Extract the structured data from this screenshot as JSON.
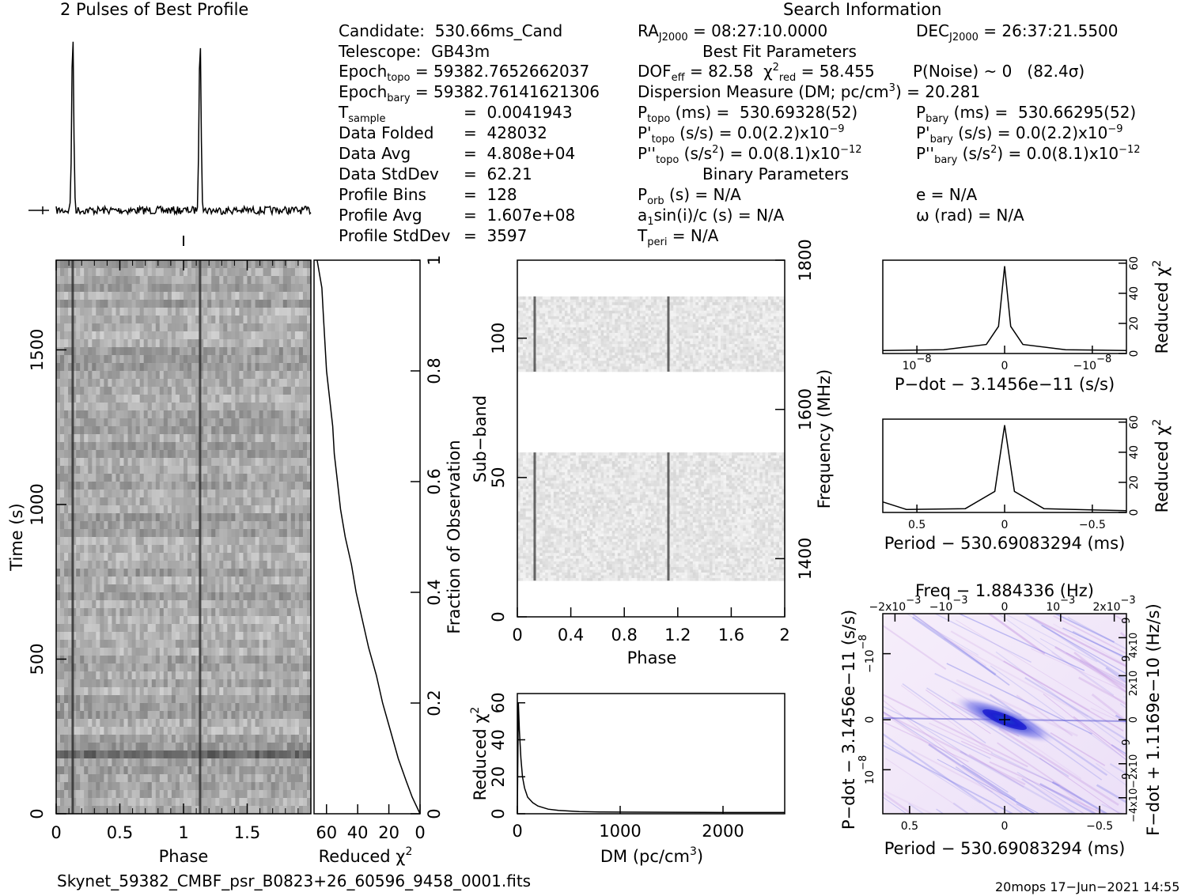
{
  "profile": {
    "title": "2 Pulses of Best Profile"
  },
  "search": {
    "heading": "Search Information",
    "candidate": "Candidate:  530.66ms_Cand",
    "telescope": "Telescope:  GB43m",
    "epoch_topo_label": "Epoch",
    "epoch_topo_sub": "topo",
    "epoch_topo_value": " = 59382.7652662037",
    "epoch_bary_label": "Epoch",
    "epoch_bary_sub": "bary",
    "epoch_bary_value": " = 59382.76141621306",
    "tsample_label": "T",
    "tsample_sub": "sample",
    "tsample_value": "=  0.0041943",
    "folded_label": "Data Folded",
    "folded_value": "=  428032",
    "avg_label": "Data Avg",
    "avg_value": "=  4.808e+04",
    "std_label": "Data StdDev",
    "std_value": "=  62.21",
    "bins_label": "Profile Bins",
    "bins_value": "=  128",
    "pavg_label": "Profile Avg",
    "pavg_value": "=  1.607e+08",
    "pstd_label": "Profile StdDev",
    "pstd_value": "=  3597",
    "ra_pre": "RA",
    "ra_sub": "J2000",
    "ra_value": " = 08:27:10.0000",
    "dec_pre": "DEC",
    "dec_sub": "J2000",
    "dec_value": " = 26:37:21.5500",
    "best_fit": "Best Fit Parameters",
    "dof_pre": "DOF",
    "dof_sub": "eff",
    "dof_value": " = 82.58  ",
    "chi_pre": "χ",
    "chi_sup": "2",
    "chi_sub": "red",
    "chi_value": " = 58.455",
    "pnoise": "P(Noise) ~ 0   (82.4σ)",
    "dm_pre": "Dispersion Measure (DM; pc/cm",
    "dm_sup": "3",
    "dm_value": ") = 20.281",
    "ptopo_pre": "P",
    "ptopo_sub": "topo",
    "ptopo_value": " (ms) =  530.69328(52)",
    "pbary_pre": "P",
    "pbary_sub": "bary",
    "pbary_value": " (ms) =  530.66295(52)",
    "pdtopo_pre": "P'",
    "pdtopo_sub": "topo",
    "pdtopo_value": " (s/s) = 0.0(2.2)x10",
    "pdtopo_sup": "−9",
    "pdbary_pre": "P'",
    "pdbary_sub": "bary",
    "pdbary_value": " (s/s) = 0.0(2.2)x10",
    "pdbary_sup": "−9",
    "pddtopo_pre": "P''",
    "pddtopo_sub": "topo",
    "pddtopo_mid": " (s/s",
    "pddtopo_sup1": "2",
    "pddtopo_value": ") = 0.0(8.1)x10",
    "pddtopo_sup2": "−12",
    "pddbary_pre": "P''",
    "pddbary_sub": "bary",
    "pddbary_mid": " (s/s",
    "pddbary_sup1": "2",
    "pddbary_value": ") = 0.0(8.1)x10",
    "pddbary_sup2": "−12",
    "binary": "Binary Parameters",
    "porb_pre": "P",
    "porb_sub": "orb",
    "porb_value": " (s) = N/A",
    "asini_pre": "a",
    "asini_sub": "1",
    "asini_value": "sin(i)/c (s) = N/A",
    "tperi_pre": "T",
    "tperi_sub": "peri",
    "tperi_value": " = N/A",
    "ecc": "e = N/A",
    "omega": "ω (rad) = N/A"
  },
  "footer": {
    "filename": "Skynet_59382_CMBF_psr_B0823+26_60596_9458_0001.fits",
    "stamp": "20mops 17−Jun−2021 14:55"
  },
  "chart_data": [
    {
      "type": "line",
      "panel": "profile",
      "title": "2 Pulses of Best Profile",
      "x": [
        0,
        0.13,
        1.0,
        1.13,
        2.0
      ],
      "pulse_phases": [
        0.13,
        1.13
      ],
      "xlim": [
        0,
        2
      ]
    },
    {
      "type": "heatmap",
      "panel": "time-phase",
      "xlabel": "Phase",
      "ylabel": "Time (s)",
      "xticks": [
        "0",
        "0.5",
        "1",
        "1.5"
      ],
      "yticks": [
        "0",
        "500",
        "1000",
        "1500"
      ],
      "xlim": [
        0,
        2
      ],
      "ylim": [
        0,
        1790
      ],
      "pulse_phases": [
        0.13,
        1.13
      ]
    },
    {
      "type": "line",
      "panel": "time-chi2",
      "xlabel": "Reduced χ",
      "xlabel_sup": "2",
      "ylabel": "Fraction of Observation",
      "xticks": [
        "60",
        "40",
        "20",
        "0"
      ],
      "yticks": [
        "0",
        "0.2",
        "0.4",
        "0.6",
        "0.8",
        "1"
      ],
      "xlim": [
        68,
        0
      ],
      "ylim": [
        0,
        1
      ],
      "y": [
        0,
        0.03,
        0.06,
        0.1,
        0.15,
        0.2,
        0.25,
        0.3,
        0.35,
        0.4,
        0.45,
        0.5,
        0.55,
        0.6,
        0.65,
        0.7,
        0.75,
        0.8,
        0.85,
        0.9,
        0.95,
        1.0
      ],
      "x": [
        0,
        5,
        9,
        14,
        19,
        24,
        28,
        33,
        37,
        41,
        44,
        48,
        51,
        53,
        55,
        56,
        58,
        60,
        61,
        62,
        63,
        66
      ]
    },
    {
      "type": "heatmap",
      "panel": "subband-phase",
      "xlabel": "Phase",
      "ylabel": "Sub−band",
      "y2label": "Frequency (MHz)",
      "xticks": [
        "0",
        "0.4",
        "0.8",
        "1.2",
        "1.6",
        "2"
      ],
      "yticks": [
        "0",
        "50",
        "100"
      ],
      "y2ticks": [
        "1400",
        "1600",
        "1800"
      ],
      "xlim": [
        0,
        2
      ],
      "ylim": [
        0,
        128
      ],
      "filled_subbands": [
        [
          13,
          59
        ],
        [
          88,
          115
        ]
      ],
      "pulse_phases": [
        0.13,
        1.13
      ]
    },
    {
      "type": "line",
      "panel": "dm-chi2",
      "xlabel": "DM (pc/cm",
      "xlabel_sup": "3",
      "xlabel_end": ")",
      "ylabel": "Reduced χ",
      "ylabel_sup": "2",
      "xticks": [
        "0",
        "1000",
        "2000"
      ],
      "yticks": [
        "0",
        "20",
        "40",
        "60"
      ],
      "xlim": [
        0,
        2600
      ],
      "ylim": [
        0,
        65
      ],
      "x": [
        0,
        10,
        20,
        35,
        50,
        70,
        100,
        150,
        200,
        300,
        400,
        600,
        800,
        1000,
        1500,
        2000,
        2600
      ],
      "y": [
        0,
        60,
        45,
        30,
        20,
        14,
        9,
        6,
        4.2,
        2.5,
        1.8,
        1.2,
        1.0,
        0.9,
        0.8,
        0.7,
        0.7
      ]
    },
    {
      "type": "line",
      "panel": "pdot-chi2",
      "xlabel": "P−dot − 3.1456e−11 (s/s)",
      "y2label": "Reduced χ",
      "y2label_sup": "2",
      "xticks": [
        "10",
        "0",
        "−10"
      ],
      "xticks_sup": [
        "−8",
        "",
        "−8"
      ],
      "yticks": [
        "0",
        "20",
        "40",
        "60"
      ],
      "ylim": [
        0,
        62
      ],
      "x": [
        -1,
        -0.5,
        -0.15,
        -0.05,
        0,
        0.05,
        0.15,
        0.5,
        1
      ],
      "y": [
        2,
        2.5,
        6,
        18,
        58,
        18,
        6,
        2.5,
        2
      ]
    },
    {
      "type": "line",
      "panel": "period-chi2",
      "xlabel": "Period − 530.69083294 (ms)",
      "y2label": "Reduced χ",
      "y2label_sup": "2",
      "xticks": [
        "0.5",
        "0",
        "−0.5"
      ],
      "yticks": [
        "0",
        "20",
        "40",
        "60"
      ],
      "ylim": [
        0,
        62
      ],
      "x": [
        0.62,
        0.5,
        0.2,
        0.05,
        0,
        -0.05,
        -0.2,
        -0.5,
        -0.62
      ],
      "y": [
        7,
        2,
        2.5,
        14,
        58,
        14,
        2.5,
        1.5,
        1.2
      ]
    },
    {
      "type": "heatmap",
      "panel": "period-pdot",
      "title": "Freq − 1.884336 (Hz)",
      "xlabel": "Period − 530.69083294 (ms)",
      "ylabel": "P−dot − 3.1456e−11 (s/s)",
      "y2label": "F−dot + 1.1169e−10 (Hz/s)",
      "xticks": [
        "0.5",
        "0",
        "−0.5"
      ],
      "yticks": [
        "10",
        "0",
        "−10"
      ],
      "yticks_sup": [
        "−8",
        "",
        "−8"
      ],
      "x2ticks": [
        "−2x10",
        "−10",
        "0",
        "10",
        "2x10"
      ],
      "x2ticks_sup": [
        "−3",
        "−3",
        "",
        "−3",
        "−3"
      ],
      "y2ticks": [
        "−4x10",
        "−2x10",
        "0",
        "2x10",
        "4x10"
      ],
      "y2ticks_sup": [
        "−9",
        "−9",
        "",
        "−9",
        "−9"
      ],
      "xlim": [
        0.62,
        -0.62
      ],
      "ylim": [
        15,
        -15
      ],
      "peak": [
        0,
        0
      ]
    }
  ]
}
